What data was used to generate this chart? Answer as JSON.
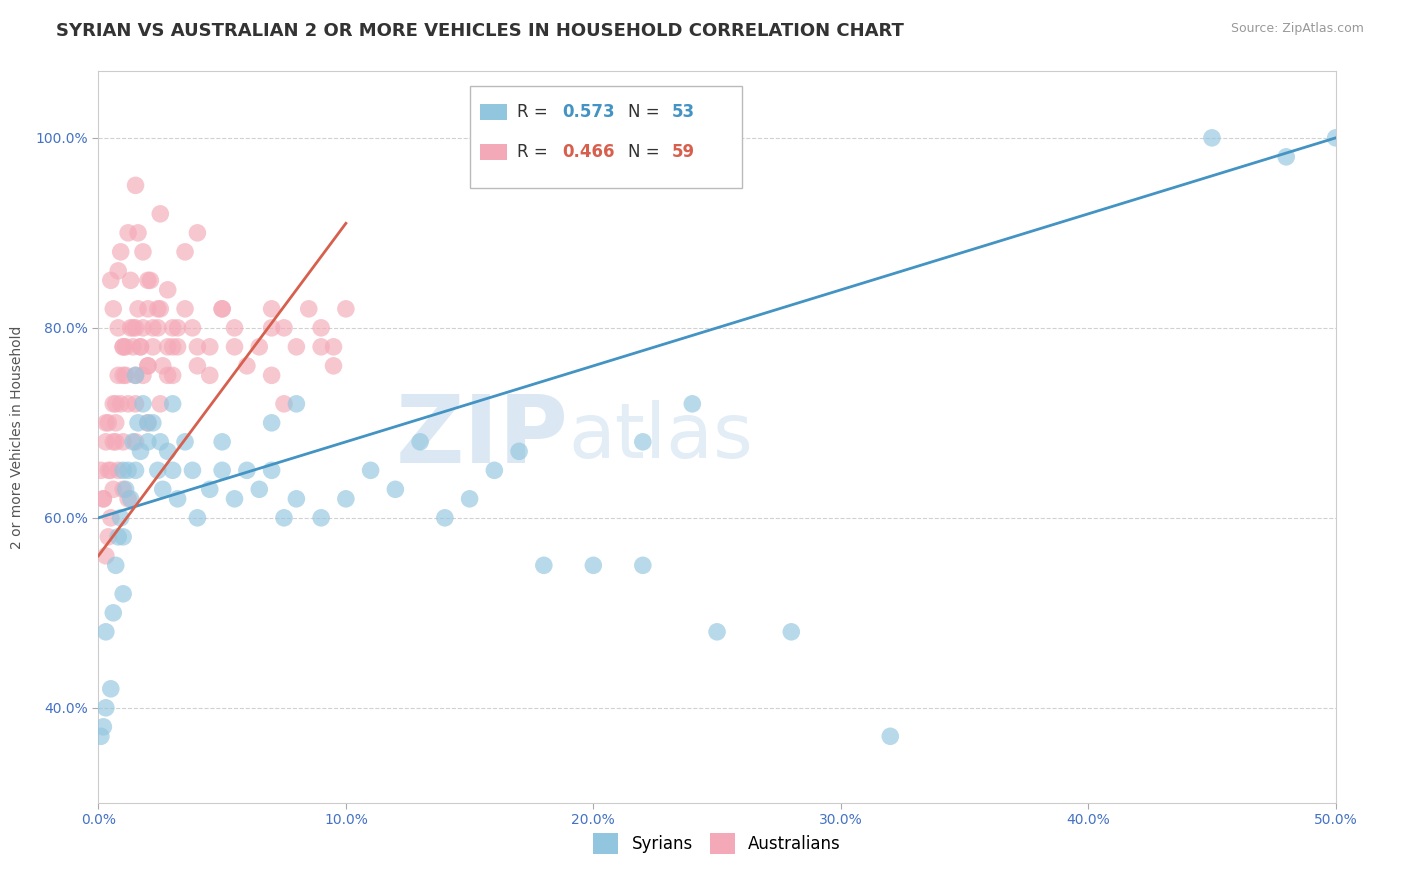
{
  "title": "SYRIAN VS AUSTRALIAN 2 OR MORE VEHICLES IN HOUSEHOLD CORRELATION CHART",
  "source": "Source: ZipAtlas.com",
  "ylabel": "2 or more Vehicles in Household",
  "xlim": [
    0.0,
    50.0
  ],
  "ylim": [
    30.0,
    107.0
  ],
  "xticks": [
    0.0,
    10.0,
    20.0,
    30.0,
    40.0,
    50.0
  ],
  "xticklabels": [
    "0.0%",
    "10.0%",
    "20.0%",
    "30.0%",
    "40.0%",
    "50.0%"
  ],
  "yticks": [
    40.0,
    60.0,
    80.0,
    100.0
  ],
  "yticklabels": [
    "40.0%",
    "60.0%",
    "80.0%",
    "100.0%"
  ],
  "syrians_R": "0.573",
  "syrians_N": "53",
  "australians_R": "0.466",
  "australians_N": "59",
  "syrians_color": "#92c5de",
  "australians_color": "#f4a9b8",
  "syrians_line_color": "#4393c3",
  "australians_line_color": "#d6604d",
  "watermark_zip": "ZIP",
  "watermark_atlas": "atlas",
  "syrians_x": [
    0.3,
    0.5,
    0.6,
    0.7,
    0.8,
    0.9,
    1.0,
    1.0,
    1.1,
    1.2,
    1.3,
    1.4,
    1.5,
    1.6,
    1.7,
    1.8,
    2.0,
    2.2,
    2.4,
    2.5,
    2.6,
    2.8,
    3.0,
    3.2,
    3.5,
    3.8,
    4.0,
    4.5,
    5.0,
    5.5,
    6.0,
    6.5,
    7.0,
    7.5,
    8.0,
    9.0,
    10.0,
    11.0,
    12.0,
    13.0,
    14.0,
    15.0,
    16.0,
    17.0,
    18.0,
    20.0,
    22.0,
    25.0,
    28.0,
    32.0,
    45.0,
    48.0,
    50.0
  ],
  "syrians_y": [
    48.0,
    42.0,
    50.0,
    55.0,
    58.0,
    60.0,
    52.0,
    65.0,
    63.0,
    65.0,
    62.0,
    68.0,
    65.0,
    70.0,
    67.0,
    72.0,
    68.0,
    70.0,
    65.0,
    68.0,
    63.0,
    67.0,
    65.0,
    62.0,
    68.0,
    65.0,
    60.0,
    63.0,
    65.0,
    62.0,
    65.0,
    63.0,
    65.0,
    60.0,
    62.0,
    60.0,
    62.0,
    65.0,
    63.0,
    68.0,
    60.0,
    62.0,
    65.0,
    67.0,
    55.0,
    55.0,
    55.0,
    48.0,
    48.0,
    37.0,
    100.0,
    98.0,
    100.0
  ],
  "syrians_extra_x": [
    0.1,
    0.2,
    0.3,
    1.0,
    1.5,
    2.0,
    3.0,
    5.0,
    7.0,
    8.0,
    22.0,
    24.0
  ],
  "syrians_extra_y": [
    37.0,
    38.0,
    40.0,
    58.0,
    75.0,
    70.0,
    72.0,
    68.0,
    70.0,
    72.0,
    68.0,
    72.0
  ],
  "australians_x": [
    0.1,
    0.2,
    0.3,
    0.4,
    0.5,
    0.6,
    0.6,
    0.7,
    0.8,
    0.9,
    1.0,
    1.0,
    1.1,
    1.2,
    1.3,
    1.4,
    1.5,
    1.5,
    1.6,
    1.7,
    1.8,
    2.0,
    2.0,
    2.2,
    2.4,
    2.5,
    2.6,
    2.8,
    3.0,
    3.0,
    3.2,
    3.5,
    3.8,
    4.0,
    4.5,
    5.0,
    5.5,
    6.0,
    6.5,
    7.0,
    7.5,
    8.0,
    8.5,
    9.0,
    9.5,
    10.0,
    1.2,
    1.8,
    2.5,
    0.8,
    3.5,
    4.0,
    1.5,
    2.0,
    2.8,
    0.5,
    1.0,
    1.5,
    7.0
  ],
  "australians_y": [
    65.0,
    62.0,
    68.0,
    70.0,
    65.0,
    72.0,
    68.0,
    70.0,
    75.0,
    72.0,
    78.0,
    68.0,
    75.0,
    72.0,
    80.0,
    78.0,
    80.0,
    75.0,
    82.0,
    78.0,
    80.0,
    76.0,
    82.0,
    78.0,
    80.0,
    82.0,
    76.0,
    78.0,
    75.0,
    80.0,
    78.0,
    82.0,
    80.0,
    76.0,
    78.0,
    82.0,
    80.0,
    76.0,
    78.0,
    75.0,
    80.0,
    78.0,
    82.0,
    80.0,
    78.0,
    82.0,
    90.0,
    88.0,
    92.0,
    86.0,
    88.0,
    90.0,
    95.0,
    85.0,
    84.0,
    85.0,
    78.0,
    72.0,
    82.0
  ],
  "australians_extra_x": [
    0.3,
    0.5,
    1.0,
    1.5,
    2.0,
    0.8,
    1.2,
    2.5,
    0.4,
    0.6,
    1.8,
    3.0,
    0.7,
    1.0,
    2.2,
    0.3,
    4.5,
    5.5,
    7.5,
    9.5,
    0.6,
    0.8,
    1.3,
    1.7,
    2.4,
    0.9,
    1.6,
    2.1,
    0.2,
    0.4,
    0.7,
    1.1,
    1.4,
    2.0,
    2.8,
    3.2,
    4.0,
    5.0,
    7.0,
    9.0
  ],
  "australians_extra_y": [
    56.0,
    60.0,
    63.0,
    68.0,
    70.0,
    65.0,
    62.0,
    72.0,
    58.0,
    63.0,
    75.0,
    78.0,
    68.0,
    75.0,
    80.0,
    70.0,
    75.0,
    78.0,
    72.0,
    76.0,
    82.0,
    80.0,
    85.0,
    78.0,
    82.0,
    88.0,
    90.0,
    85.0,
    62.0,
    65.0,
    72.0,
    78.0,
    80.0,
    76.0,
    75.0,
    80.0,
    78.0,
    82.0,
    80.0,
    78.0
  ],
  "background_color": "#ffffff",
  "grid_color": "#cccccc",
  "title_fontsize": 13,
  "tick_fontsize": 10,
  "tick_color": "#4472c4"
}
